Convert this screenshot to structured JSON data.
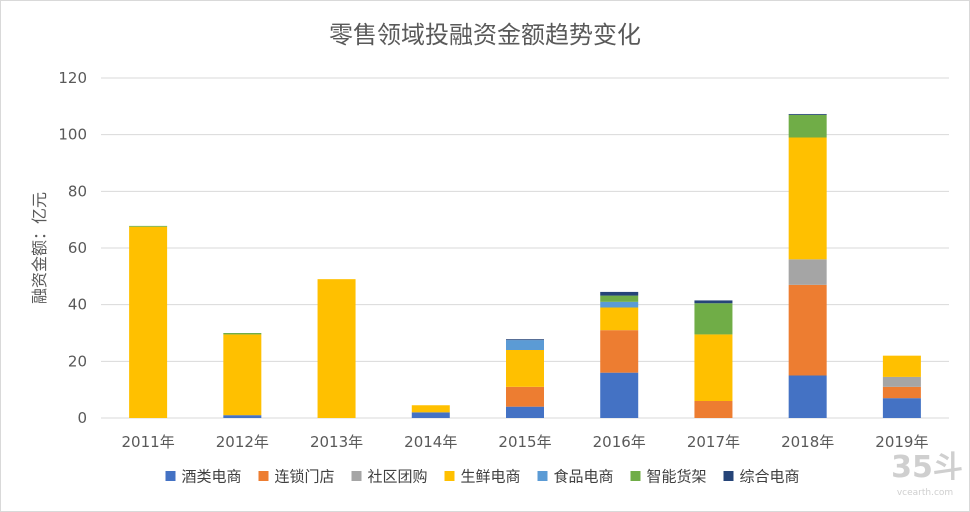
{
  "chart_data": {
    "type": "bar",
    "stacked": true,
    "title": "零售领域投融资金额趋势变化",
    "xlabel": "",
    "ylabel": "融资金额：亿元",
    "ylim": [
      0,
      120
    ],
    "yticks": [
      0,
      20,
      40,
      60,
      80,
      100,
      120
    ],
    "grid": true,
    "legend_position": "bottom",
    "categories": [
      "2011年",
      "2012年",
      "2013年",
      "2014年",
      "2015年",
      "2016年",
      "2017年",
      "2018年",
      "2019年"
    ],
    "series": [
      {
        "name": "酒类电商",
        "color": "#4472c4",
        "values": [
          0,
          1,
          0,
          2,
          4,
          16,
          0,
          15,
          7
        ]
      },
      {
        "name": "连锁门店",
        "color": "#ed7d31",
        "values": [
          0,
          0,
          0,
          0,
          7,
          15,
          6,
          32,
          4
        ]
      },
      {
        "name": "社区团购",
        "color": "#a5a5a5",
        "values": [
          0,
          0,
          0,
          0,
          0,
          0,
          0,
          9,
          3.5
        ]
      },
      {
        "name": "生鲜电商",
        "color": "#ffc000",
        "values": [
          67.5,
          28.5,
          49,
          2.5,
          13,
          8,
          23.5,
          43,
          7.5
        ]
      },
      {
        "name": "食品电商",
        "color": "#5b9bd5",
        "values": [
          0,
          0,
          0,
          0,
          3.5,
          2,
          0,
          0,
          0
        ]
      },
      {
        "name": "智能货架",
        "color": "#70ad47",
        "values": [
          0.3,
          0.5,
          0,
          0,
          0,
          2.2,
          11,
          8,
          0
        ]
      },
      {
        "name": "综合电商",
        "color": "#264478",
        "values": [
          0,
          0,
          0,
          0,
          0.3,
          1.3,
          1,
          0.3,
          0
        ]
      }
    ]
  },
  "watermark": {
    "brand": "35斗",
    "site": "vcearth.com"
  }
}
